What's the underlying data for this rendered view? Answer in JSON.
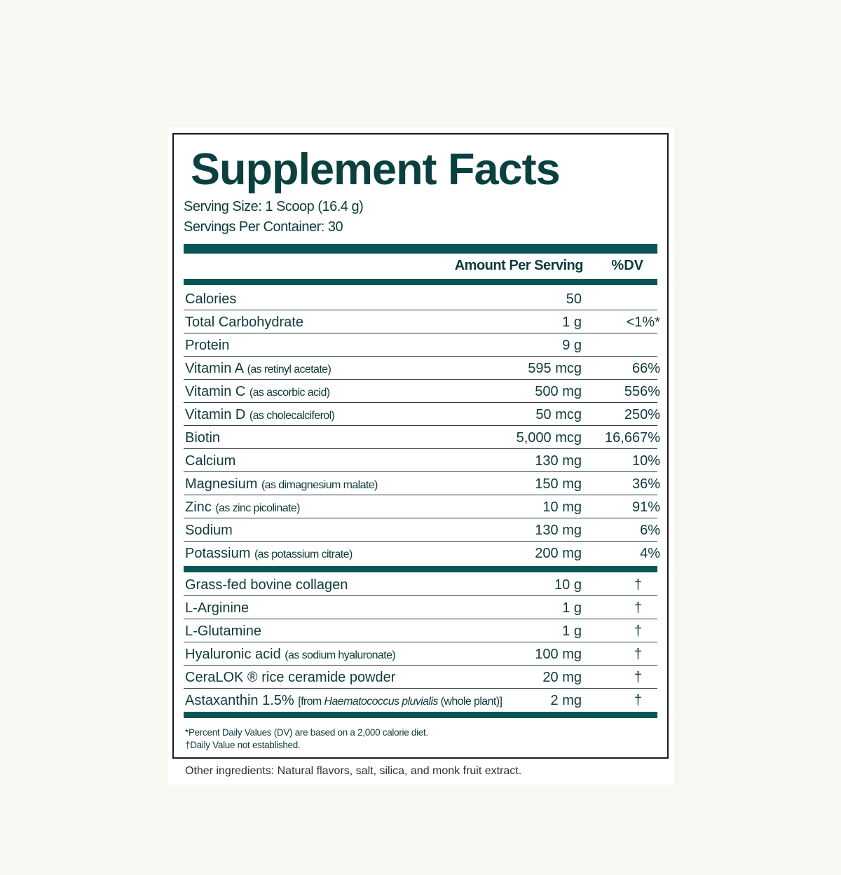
{
  "title": "Supplement Facts",
  "serving_size": "Serving Size: 1 Scoop (16.4 g)",
  "servings_per_container": "Servings Per Container: 30",
  "header": {
    "amount": "Amount Per Serving",
    "dv": "%DV"
  },
  "nutrients": [
    {
      "name": "Calories",
      "note": "",
      "amount": "50",
      "dv": ""
    },
    {
      "name": "Total Carbohydrate",
      "note": "",
      "amount": "1 g",
      "dv": "<1%*"
    },
    {
      "name": "Protein",
      "note": "",
      "amount": "9 g",
      "dv": ""
    },
    {
      "name": "Vitamin A",
      "note": "(as retinyl acetate)",
      "amount": "595 mcg",
      "dv": "66%"
    },
    {
      "name": "Vitamin C",
      "note": "(as ascorbic acid)",
      "amount": "500 mg",
      "dv": "556%"
    },
    {
      "name": "Vitamin D",
      "note": "(as cholecalciferol)",
      "amount": "50 mcg",
      "dv": "250%"
    },
    {
      "name": "Biotin",
      "note": "",
      "amount": "5,000 mcg",
      "dv": "16,667%"
    },
    {
      "name": "Calcium",
      "note": "",
      "amount": "130 mg",
      "dv": "10%"
    },
    {
      "name": "Magnesium",
      "note": "(as dimagnesium malate)",
      "amount": "150 mg",
      "dv": "36%"
    },
    {
      "name": "Zinc",
      "note": "(as zinc picolinate)",
      "amount": "10 mg",
      "dv": "91%"
    },
    {
      "name": "Sodium",
      "note": "",
      "amount": "130 mg",
      "dv": "6%"
    },
    {
      "name": "Potassium",
      "note": "(as potassium citrate)",
      "amount": "200 mg",
      "dv": "4%"
    }
  ],
  "ingredients": [
    {
      "name": "Grass-fed bovine collagen",
      "note": "",
      "amount": "10 g",
      "dv": "†"
    },
    {
      "name": "L-Arginine",
      "note": "",
      "amount": "1 g",
      "dv": "†"
    },
    {
      "name": "L-Glutamine",
      "note": "",
      "amount": "1 g",
      "dv": "†"
    },
    {
      "name": "Hyaluronic acid",
      "note": "(as sodium hyaluronate)",
      "amount": "100 mg",
      "dv": "†"
    },
    {
      "name": "CeraLOK ® rice ceramide powder",
      "note": "",
      "amount": "20 mg",
      "dv": "†"
    },
    {
      "name": "Astaxanthin 1.5%",
      "note": "[from Haematococcus pluvialis (whole plant)]",
      "amount": "2 mg",
      "dv": "†"
    }
  ],
  "footnotes": [
    "*Percent Daily Values (DV) are based on a 2,000 calorie diet.",
    "†Daily Value not established."
  ],
  "other_ingredients": "Other ingredients: Natural flavors, salt, silica, and monk fruit extract.",
  "colors": {
    "text": "#0f3a3a",
    "bars": "#0b5555",
    "background": "#f8f7f2"
  }
}
